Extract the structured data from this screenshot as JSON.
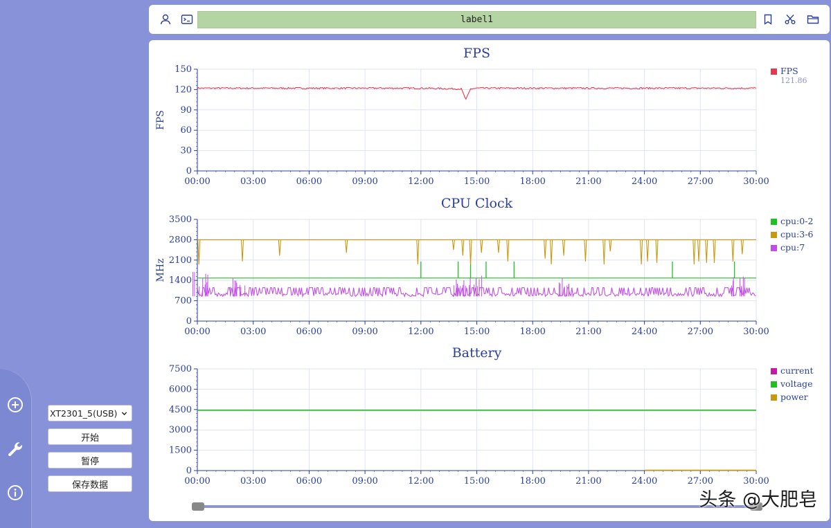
{
  "toolbar": {
    "label": "label1",
    "icons": [
      "user-icon",
      "terminal-icon",
      "bookmark-icon",
      "scissors-icon",
      "folder-icon"
    ]
  },
  "sidebar": {
    "device_select": "XT2301_5(USB)",
    "start_label": "开始",
    "pause_label": "暂停",
    "save_label": "保存数据",
    "icons": [
      "plus-circle-icon",
      "wrench-icon",
      "info-icon"
    ]
  },
  "watermark": "头条 @大肥皂",
  "colors": {
    "background": "#8792d8",
    "fps": "#e8384f",
    "cpu_0_2": "#1ec21e",
    "cpu_3_6": "#c9980e",
    "cpu_7": "#c24ee8",
    "current": "#c41aa4",
    "voltage": "#1ec21e",
    "power": "#c9980e",
    "axis_text": "#2a3f99",
    "label_bar": "#b5d4a3"
  },
  "x_ticks": [
    "00:00",
    "03:00",
    "06:00",
    "09:00",
    "12:00",
    "15:00",
    "18:00",
    "21:00",
    "24:00",
    "27:00",
    "30:00"
  ],
  "chart_data": [
    {
      "type": "line",
      "title": "FPS",
      "ylabel": "FPS",
      "ylim": [
        0,
        150
      ],
      "yticks": [
        "0",
        "30",
        "60",
        "90",
        "120",
        "150"
      ],
      "xlim": [
        "00:00",
        "30:00"
      ],
      "grid": true,
      "legend_placement": "top-right",
      "series": [
        {
          "name": "FPS",
          "color": "#e8384f",
          "legend_value": "121.86",
          "x": [
            "00:00",
            "03:00",
            "06:00",
            "09:00",
            "12:00",
            "14:10",
            "14:25",
            "14:40",
            "15:00",
            "18:00",
            "21:00",
            "24:00",
            "27:00",
            "30:00"
          ],
          "values": [
            122,
            122,
            122,
            122,
            122,
            121,
            105,
            121,
            122,
            122,
            122,
            122,
            122,
            122
          ]
        }
      ]
    },
    {
      "type": "line",
      "title": "CPU Clock",
      "ylabel": "MHz",
      "ylim": [
        0,
        3500
      ],
      "yticks": [
        "0",
        "700",
        "1400",
        "2100",
        "2800",
        "3500"
      ],
      "xlim": [
        "00:00",
        "30:00"
      ],
      "grid": true,
      "legend_placement": "top-right",
      "series": [
        {
          "name": "cpu:0-2",
          "color": "#1ec21e",
          "x": [
            "00:00",
            "12:00",
            "14:00",
            "14:40",
            "15:30",
            "17:00",
            "25:30",
            "28:50",
            "30:00"
          ],
          "values": [
            1480,
            1480,
            1480,
            1480,
            1480,
            1480,
            1480,
            1480,
            1480
          ],
          "spikes": [
            [
              "12:00",
              2050
            ],
            [
              "14:00",
              2050
            ],
            [
              "14:40",
              2050
            ],
            [
              "15:30",
              2050
            ],
            [
              "17:00",
              2050
            ],
            [
              "25:30",
              2050
            ],
            [
              "28:50",
              2050
            ]
          ]
        },
        {
          "name": "cpu:3-6",
          "color": "#c9980e",
          "x": [
            "00:00",
            "03:00",
            "06:00",
            "09:00",
            "12:00",
            "15:00",
            "18:00",
            "21:00",
            "24:00",
            "27:00",
            "30:00"
          ],
          "values": [
            2800,
            2800,
            2800,
            2800,
            2800,
            2800,
            2800,
            2800,
            2800,
            2800,
            2800
          ],
          "dips": [
            [
              "00:05",
              1950
            ],
            [
              "02:25",
              2050
            ],
            [
              "04:25",
              2250
            ],
            [
              "08:00",
              2350
            ],
            [
              "11:50",
              1950
            ],
            [
              "13:45",
              2450
            ],
            [
              "14:15",
              2250
            ],
            [
              "14:40",
              1950
            ],
            [
              "15:15",
              2350
            ],
            [
              "16:10",
              2350
            ],
            [
              "16:40",
              2050
            ],
            [
              "18:40",
              2150
            ],
            [
              "19:00",
              1950
            ],
            [
              "19:40",
              2250
            ],
            [
              "20:50",
              2050
            ],
            [
              "21:50",
              1950
            ],
            [
              "22:10",
              2400
            ],
            [
              "23:50",
              1950
            ],
            [
              "24:10",
              2050
            ],
            [
              "24:40",
              2000
            ],
            [
              "26:40",
              1950
            ],
            [
              "26:55",
              2050
            ],
            [
              "27:20",
              2000
            ],
            [
              "27:45",
              2000
            ],
            [
              "28:45",
              2050
            ],
            [
              "29:15",
              2300
            ]
          ]
        },
        {
          "name": "cpu:7",
          "color": "#c24ee8",
          "x": [
            "00:00",
            "00:20",
            "02:00",
            "06:00",
            "12:00",
            "14:00",
            "14:45",
            "15:00",
            "19:30",
            "19:50",
            "22:00",
            "28:50",
            "29:05",
            "30:00"
          ],
          "values": [
            1700,
            900,
            1500,
            950,
            950,
            1500,
            1700,
            950,
            1600,
            1200,
            950,
            1550,
            1200,
            950
          ],
          "range": [
            850,
            1150
          ]
        }
      ]
    },
    {
      "type": "line",
      "title": "Battery",
      "ylabel": "",
      "ylim": [
        0,
        7500
      ],
      "yticks": [
        "0",
        "1500",
        "3000",
        "4500",
        "6000",
        "7500"
      ],
      "xlim": [
        "00:00",
        "30:00"
      ],
      "grid": true,
      "legend_placement": "top-right",
      "series": [
        {
          "name": "current",
          "color": "#c41aa4",
          "x": [],
          "values": []
        },
        {
          "name": "voltage",
          "color": "#1ec21e",
          "x": [
            "00:00",
            "30:00"
          ],
          "values": [
            4450,
            4450
          ]
        },
        {
          "name": "power",
          "color": "#c9980e",
          "x": [
            "24:00",
            "30:00"
          ],
          "values": [
            20,
            20
          ]
        }
      ]
    }
  ]
}
